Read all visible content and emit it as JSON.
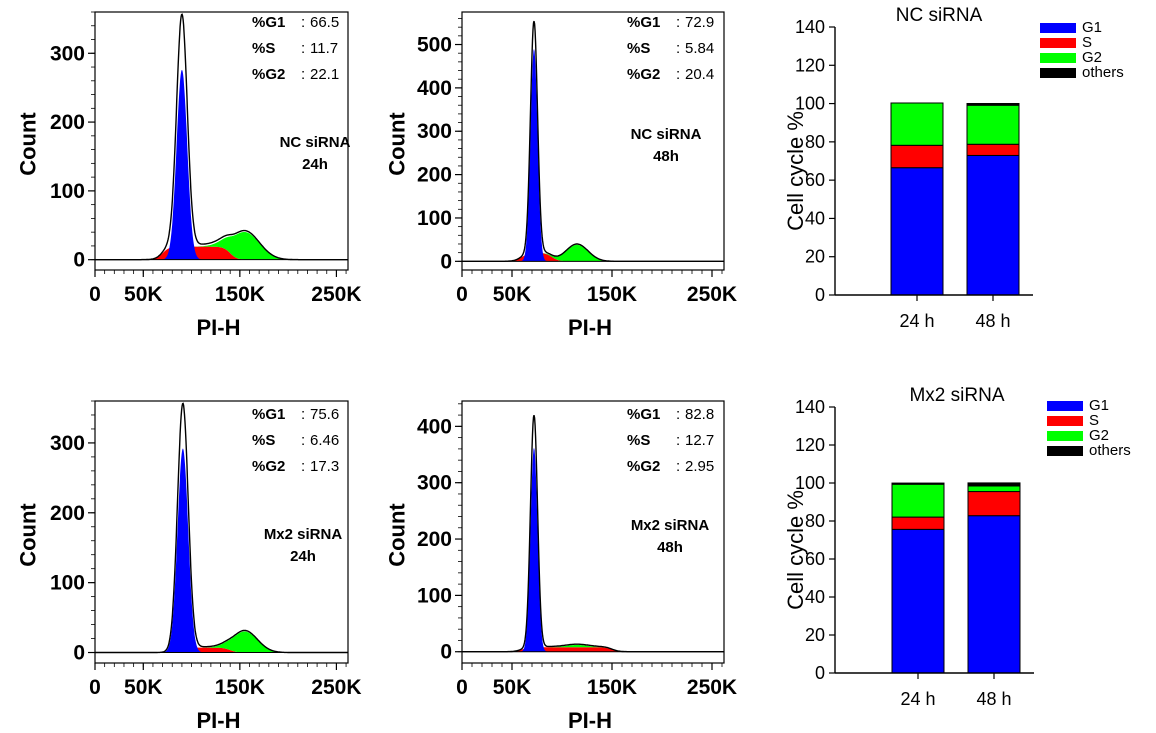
{
  "chart_data": [
    {
      "id": "hist-nc-24h",
      "type": "area",
      "panel": "histogram",
      "xlabel": "PI-H",
      "ylabel": "Count",
      "x_ticks": [
        "0",
        "50K",
        "150K",
        "250K"
      ],
      "x_tick_values": [
        0,
        50000,
        150000,
        250000
      ],
      "xlim": [
        0,
        262000
      ],
      "y_ticks": [
        "0",
        "100",
        "200",
        "300"
      ],
      "y_tick_values": [
        0,
        100,
        200,
        300
      ],
      "ylim": [
        -15,
        360
      ],
      "sample_label": [
        "NC siRNA",
        "24h"
      ],
      "stats": [
        {
          "label": "%G1",
          "value": "66.5"
        },
        {
          "label": "%S",
          "value": "11.7"
        },
        {
          "label": "%G2",
          "value": "22.1"
        }
      ],
      "colors": {
        "G1": "#0000ff",
        "S": "#ff0000",
        "G2": "#00ff00"
      },
      "peaks": {
        "g1": {
          "center": 90000,
          "sigma": 5500,
          "height": 276
        },
        "s": {
          "start": 70000,
          "end": 140000,
          "plateau": 19
        },
        "g2": {
          "center": 155000,
          "sigma": 15000,
          "height": 40
        },
        "outline_extra": 59
      }
    },
    {
      "id": "hist-nc-48h",
      "type": "area",
      "panel": "histogram",
      "xlabel": "PI-H",
      "ylabel": "Count",
      "x_ticks": [
        "0",
        "50K",
        "150K",
        "250K"
      ],
      "x_tick_values": [
        0,
        50000,
        150000,
        250000
      ],
      "xlim": [
        0,
        262000
      ],
      "y_ticks": [
        "0",
        "100",
        "200",
        "300",
        "400",
        "500"
      ],
      "y_tick_values": [
        0,
        100,
        200,
        300,
        400,
        500
      ],
      "ylim": [
        -20,
        575
      ],
      "sample_label": [
        "NC siRNA",
        "48h"
      ],
      "stats": [
        {
          "label": "%G1",
          "value": "72.9"
        },
        {
          "label": "%S",
          "value": "5.84"
        },
        {
          "label": "%G2",
          "value": "20.4"
        }
      ],
      "colors": {
        "G1": "#0000ff",
        "S": "#ff0000",
        "G2": "#00ff00"
      },
      "peaks": {
        "g1": {
          "center": 72000,
          "sigma": 3500,
          "height": 490
        },
        "s": {
          "start": 60000,
          "end": 90000,
          "plateau": 20
        },
        "g2": {
          "center": 115000,
          "sigma": 11000,
          "height": 38
        },
        "outline_extra": 42
      }
    },
    {
      "id": "hist-mx2-24h",
      "type": "area",
      "panel": "histogram",
      "xlabel": "PI-H",
      "ylabel": "Count",
      "x_ticks": [
        "0",
        "50K",
        "150K",
        "250K"
      ],
      "x_tick_values": [
        0,
        50000,
        150000,
        250000
      ],
      "xlim": [
        0,
        262000
      ],
      "y_ticks": [
        "0",
        "100",
        "200",
        "300"
      ],
      "y_tick_values": [
        0,
        100,
        200,
        300
      ],
      "ylim": [
        -15,
        360
      ],
      "sample_label": [
        "Mx2 siRNA",
        "24h"
      ],
      "stats": [
        {
          "label": "%G1",
          "value": "75.6"
        },
        {
          "label": "%S",
          "value": "6.46"
        },
        {
          "label": "%G2",
          "value": "17.3"
        }
      ],
      "colors": {
        "G1": "#0000ff",
        "S": "#ff0000",
        "G2": "#00ff00"
      },
      "peaks": {
        "g1": {
          "center": 91000,
          "sigma": 5500,
          "height": 292
        },
        "s": {
          "start": 80000,
          "end": 140000,
          "plateau": 7
        },
        "g2": {
          "center": 155000,
          "sigma": 13000,
          "height": 30
        },
        "outline_extra": 57
      }
    },
    {
      "id": "hist-mx2-48h",
      "type": "area",
      "panel": "histogram",
      "xlabel": "PI-H",
      "ylabel": "Count",
      "x_ticks": [
        "0",
        "50K",
        "150K",
        "250K"
      ],
      "x_tick_values": [
        0,
        50000,
        150000,
        250000
      ],
      "xlim": [
        0,
        262000
      ],
      "y_ticks": [
        "0",
        "100",
        "200",
        "300",
        "400"
      ],
      "y_tick_values": [
        0,
        100,
        200,
        300,
        400
      ],
      "ylim": [
        -20,
        445
      ],
      "sample_label": [
        "Mx2 siRNA",
        "48h"
      ],
      "stats": [
        {
          "label": "%G1",
          "value": "82.8"
        },
        {
          "label": "%S",
          "value": "12.7"
        },
        {
          "label": "%G2",
          "value": "2.95"
        }
      ],
      "colors": {
        "G1": "#0000ff",
        "S": "#ff0000",
        "G2": "#00ff00"
      },
      "peaks": {
        "g1": {
          "center": 72000,
          "sigma": 3500,
          "height": 362
        },
        "s": {
          "start": 60000,
          "end": 150000,
          "plateau": 8
        },
        "g2": {
          "center": 115000,
          "sigma": 11000,
          "height": 4
        },
        "outline_extra": 49
      }
    },
    {
      "id": "bar-nc",
      "type": "bar",
      "panel": "stacked",
      "title": "NC siRNA",
      "xlabel": "",
      "ylabel": "Cell cycle %",
      "categories": [
        "24 h",
        "48 h"
      ],
      "y_ticks": [
        "0",
        "20",
        "40",
        "60",
        "80",
        "100",
        "120",
        "140"
      ],
      "y_tick_values": [
        0,
        20,
        40,
        60,
        80,
        100,
        120,
        140
      ],
      "ylim": [
        0,
        140
      ],
      "series": [
        {
          "name": "G1",
          "color": "#0000ff",
          "values": [
            66.5,
            72.9
          ]
        },
        {
          "name": "S",
          "color": "#ff0000",
          "values": [
            11.7,
            5.84
          ]
        },
        {
          "name": "G2",
          "color": "#00ff00",
          "values": [
            22.1,
            20.4
          ]
        },
        {
          "name": "others",
          "color": "#000000",
          "values": [
            0,
            0.9
          ]
        }
      ],
      "legend_position": "top-right"
    },
    {
      "id": "bar-mx2",
      "type": "bar",
      "panel": "stacked",
      "title": "Mx2 siRNA",
      "xlabel": "",
      "ylabel": "Cell cycle %",
      "categories": [
        "24 h",
        "48 h"
      ],
      "y_ticks": [
        "0",
        "20",
        "40",
        "60",
        "80",
        "100",
        "120",
        "140"
      ],
      "y_tick_values": [
        0,
        20,
        40,
        60,
        80,
        100,
        120,
        140
      ],
      "ylim": [
        0,
        140
      ],
      "series": [
        {
          "name": "G1",
          "color": "#0000ff",
          "values": [
            75.6,
            82.8
          ]
        },
        {
          "name": "S",
          "color": "#ff0000",
          "values": [
            6.46,
            12.7
          ]
        },
        {
          "name": "G2",
          "color": "#00ff00",
          "values": [
            17.3,
            2.95
          ]
        },
        {
          "name": "others",
          "color": "#000000",
          "values": [
            0.6,
            1.6
          ]
        }
      ],
      "legend_position": "top-right"
    }
  ]
}
